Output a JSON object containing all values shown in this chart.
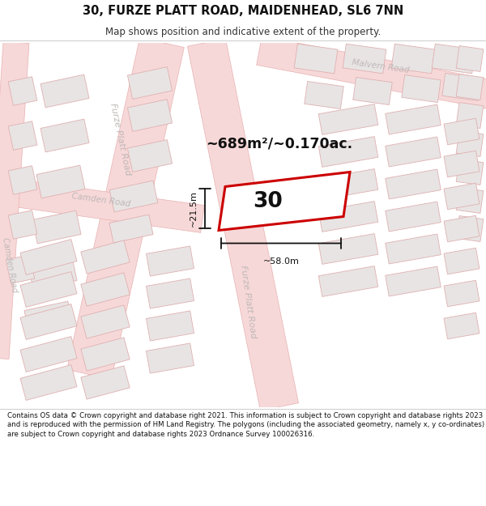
{
  "title": "30, FURZE PLATT ROAD, MAIDENHEAD, SL6 7NN",
  "subtitle": "Map shows position and indicative extent of the property.",
  "footer": "Contains OS data © Crown copyright and database right 2021. This information is subject to Crown copyright and database rights 2023 and is reproduced with the permission of HM Land Registry. The polygons (including the associated geometry, namely x, y co-ordinates) are subject to Crown copyright and database rights 2023 Ordnance Survey 100026316.",
  "area_label": "~689m²/~0.170ac.",
  "width_label": "~58.0m",
  "height_label": "~21.5m",
  "plot_number": "30",
  "bg_color": "#ffffff",
  "road_fill": "#f7d8d8",
  "road_edge": "#e8b0b0",
  "bld_fill": "#e8e4e4",
  "bld_edge": "#e0b0b0",
  "highlight_color": "#cc0000",
  "road_label_color": "#c0b8b8",
  "dim_color": "#111111",
  "map_bg": "#faf5f5"
}
